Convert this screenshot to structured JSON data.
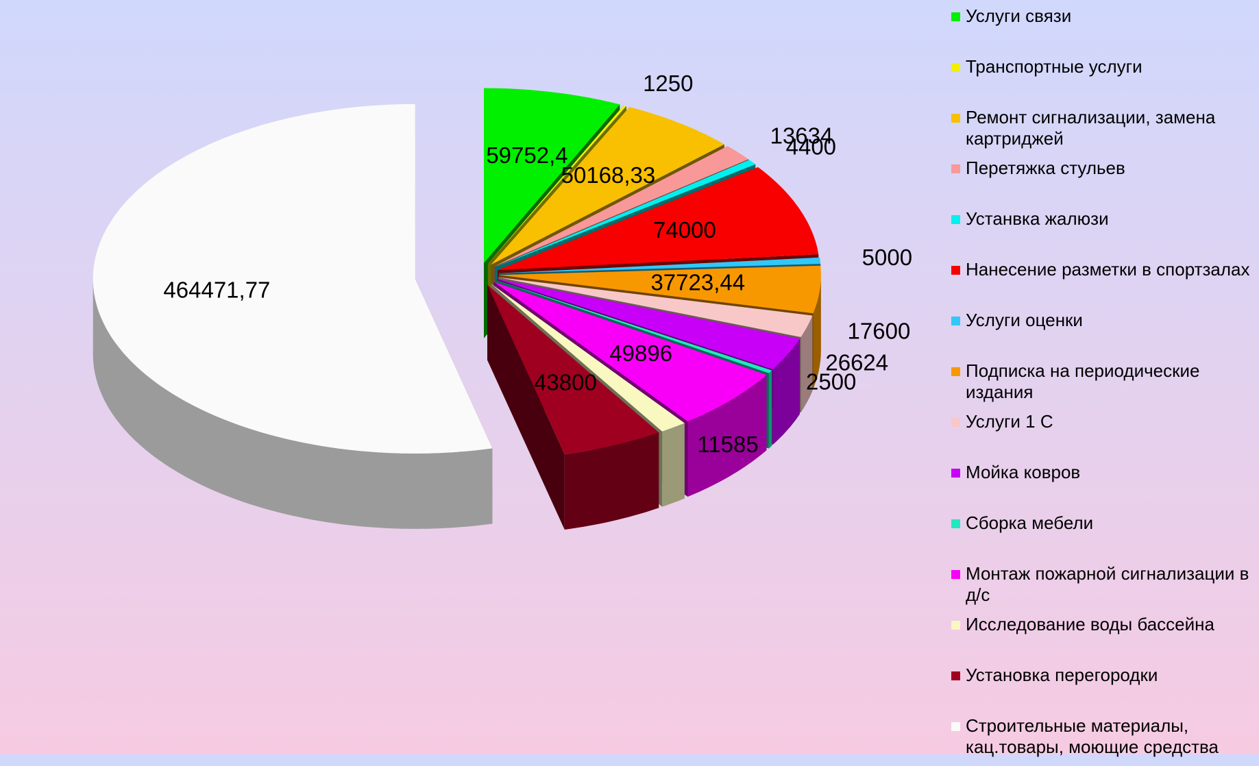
{
  "chart_data": {
    "type": "pie",
    "categories": [
      "Услуги связи",
      "Транспортные услуги",
      "Ремонт сигнализации, замена картриджей",
      "Перетяжка стульев",
      "Устанвка жалюзи",
      "Нанесение разметки в спортзалах",
      "Услуги оценки",
      "Подписка на периодические издания",
      "Услуги 1 С",
      "Мойка ковров",
      "Сборка мебели",
      "Монтаж пожарной сигнализации в д/с",
      "Исследование воды бассейна",
      "Установка перегородки",
      "Строительные материалы, кац.товары, моющие средства"
    ],
    "values": [
      59752.4,
      1250,
      50168.33,
      13634,
      4400,
      74000,
      5000,
      37723.44,
      17600,
      26624,
      2500,
      49896,
      11585,
      43800,
      464471.77
    ],
    "value_labels": [
      "59752,4",
      "1250",
      "50168,33",
      "13634",
      "4400",
      "74000",
      "5000",
      "37723,44",
      "17600",
      "26624",
      "2500",
      "49896",
      "11585",
      "43800",
      "464471,77"
    ],
    "colors": [
      "#00f000",
      "#f0f000",
      "#f8c000",
      "#f89898",
      "#00f0f0",
      "#f80000",
      "#30c8f8",
      "#f89800",
      "#f8c8c8",
      "#c800f8",
      "#20e8c0",
      "#f800f8",
      "#f8f8c0",
      "#a00020",
      "#fafafa"
    ],
    "legend": "right"
  }
}
